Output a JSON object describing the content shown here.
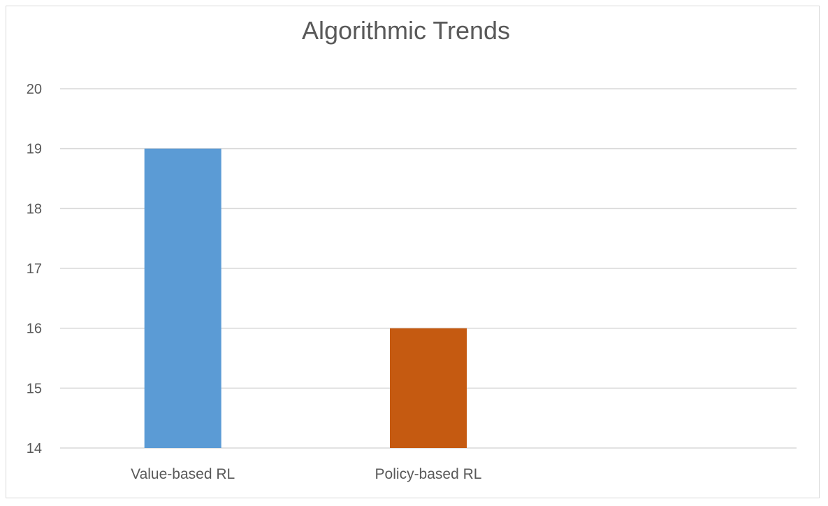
{
  "chart_data": {
    "type": "bar",
    "title": "Algorithmic Trends",
    "categories": [
      "Value-based RL",
      "Policy-based RL",
      ""
    ],
    "values": [
      19,
      16,
      null
    ],
    "colors": [
      "#5b9bd5",
      "#c55a11",
      "#a5a5a5"
    ],
    "xlabel": "",
    "ylabel": "",
    "ylim": [
      14,
      20
    ],
    "yticks": [
      14,
      15,
      16,
      17,
      18,
      19,
      20
    ],
    "grid": true,
    "legend": "none"
  }
}
